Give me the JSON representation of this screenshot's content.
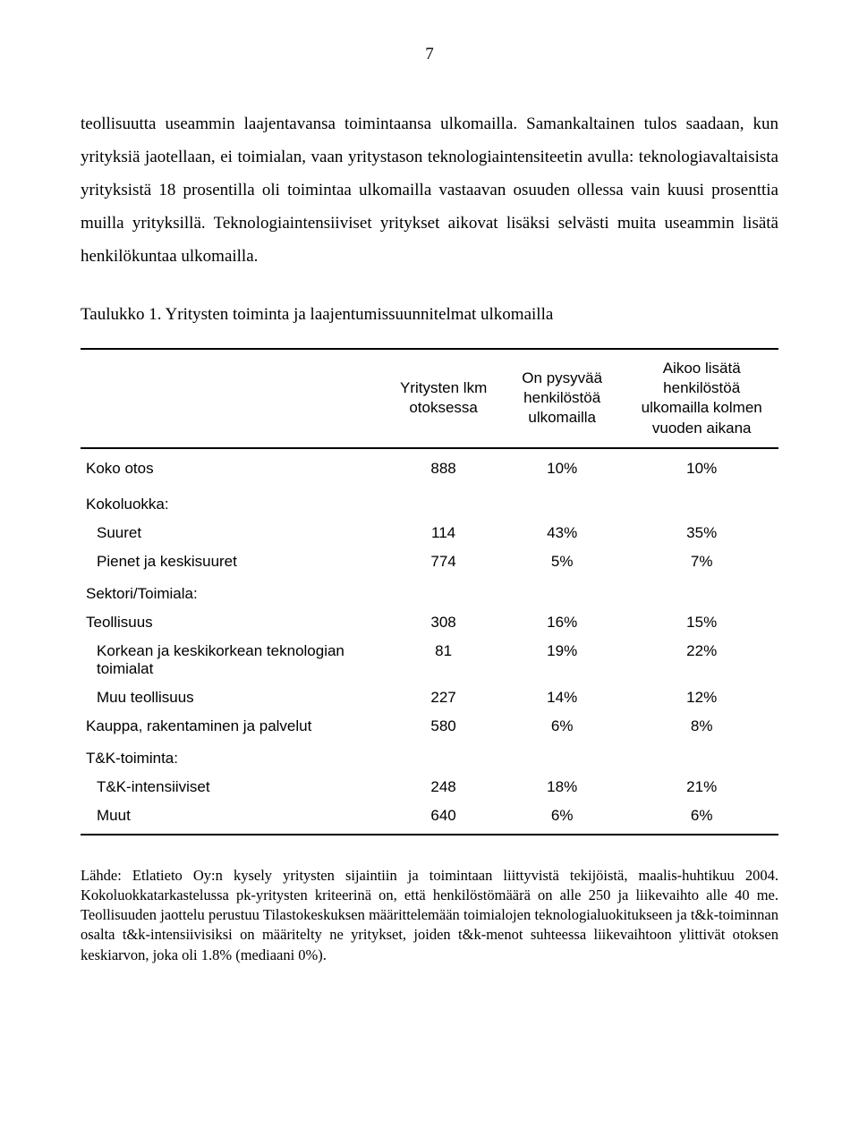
{
  "page_number": "7",
  "paragraph_1": "teollisuutta useammin laajentavansa toimintaansa ulkomailla. Samankaltainen tulos saadaan, kun yrityksiä jaotellaan, ei toimialan, vaan yritystason teknologiaintensiteetin avulla: teknologiavaltaisista yrityksistä 18 prosentilla oli toimintaa ulkomailla vastaavan osuuden ollessa vain kuusi prosenttia muilla yrityksillä. Teknologiaintensiiviset yritykset aikovat lisäksi selvästi muita useammin lisätä henkilökuntaa ulkomailla.",
  "table_caption": "Taulukko 1. Yritysten toiminta ja laajentumissuunnitelmat ulkomailla",
  "table": {
    "headers": {
      "h1": "",
      "h2": "Yritysten lkm otoksessa",
      "h3": "On pysyvää henkilöstöä ulkomailla",
      "h4": "Aikoo lisätä henkilöstöä ulkomailla kolmen vuoden aikana"
    },
    "rows": [
      {
        "label": "Koko otos",
        "c1": "888",
        "c2": "10%",
        "c3": "10%",
        "indent": 0,
        "group": false
      },
      {
        "label": "Kokoluokka:",
        "c1": "",
        "c2": "",
        "c3": "",
        "indent": 0,
        "group": true
      },
      {
        "label": "Suuret",
        "c1": "114",
        "c2": "43%",
        "c3": "35%",
        "indent": 1,
        "group": false
      },
      {
        "label": "Pienet ja keskisuuret",
        "c1": "774",
        "c2": "5%",
        "c3": "7%",
        "indent": 1,
        "group": false
      },
      {
        "label": "Sektori/Toimiala:",
        "c1": "",
        "c2": "",
        "c3": "",
        "indent": 0,
        "group": true
      },
      {
        "label": "Teollisuus",
        "c1": "308",
        "c2": "16%",
        "c3": "15%",
        "indent": 0,
        "group": false
      },
      {
        "label": "Korkean ja keskikorkean teknologian toimialat",
        "c1": "81",
        "c2": "19%",
        "c3": "22%",
        "indent": 1,
        "group": false
      },
      {
        "label": "Muu teollisuus",
        "c1": "227",
        "c2": "14%",
        "c3": "12%",
        "indent": 1,
        "group": false
      },
      {
        "label": "Kauppa, rakentaminen ja palvelut",
        "c1": "580",
        "c2": "6%",
        "c3": "8%",
        "indent": 0,
        "group": false
      },
      {
        "label": "T&K-toiminta:",
        "c1": "",
        "c2": "",
        "c3": "",
        "indent": 0,
        "group": true
      },
      {
        "label": "T&K-intensiiviset",
        "c1": "248",
        "c2": "18%",
        "c3": "21%",
        "indent": 1,
        "group": false
      },
      {
        "label": "Muut",
        "c1": "640",
        "c2": "6%",
        "c3": "6%",
        "indent": 1,
        "group": false
      }
    ]
  },
  "source_note": "Lähde: Etlatieto Oy:n kysely yritysten sijaintiin ja toimintaan liittyvistä tekijöistä, maalis-huhtikuu 2004. Kokoluokkatarkastelussa pk-yritysten kriteerinä on, että henkilöstömäärä on alle 250 ja liikevaihto alle 40 me. Teollisuuden jaottelu perustuu Tilastokeskuksen määrittelemään toimialojen teknologialuokitukseen ja t&k-toiminnan osalta t&k-intensiivisiksi on määritelty ne yritykset, joiden t&k-menot suhteessa liikevaihtoon ylittivät otoksen keskiarvon, joka oli 1.8% (mediaani 0%).",
  "colors": {
    "text": "#000000",
    "background": "#ffffff",
    "rule": "#000000"
  }
}
